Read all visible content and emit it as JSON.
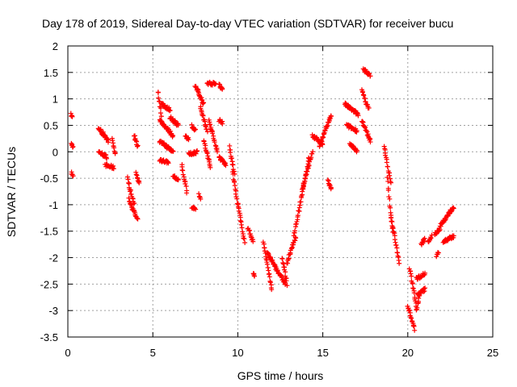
{
  "chart_data": {
    "type": "scatter",
    "title": "Day 178 of 2019, Sidereal Day-to-day VTEC variation (SDTVAR) for receiver bucu",
    "xlabel": "GPS time / hours",
    "ylabel": "SDTVAR / TECUs",
    "xlim": [
      0,
      25
    ],
    "ylim": [
      -3.5,
      2
    ],
    "xticks": [
      0,
      5,
      10,
      15,
      20,
      25
    ],
    "yticks": [
      -3.5,
      -3,
      -2.5,
      -2,
      -1.5,
      -1,
      -0.5,
      0,
      0.5,
      1,
      1.5,
      2
    ],
    "xtick_labels": [
      "0",
      "5",
      "10",
      "15",
      "20",
      "25"
    ],
    "ytick_labels": [
      "-3.5",
      "-3",
      "-2.5",
      "-2",
      "-1.5",
      "-1",
      "-0.5",
      "0",
      "0.5",
      "1",
      "1.5",
      "2"
    ],
    "grid": true,
    "marker": "+",
    "color": "#ff0000",
    "series": [
      {
        "name": "SDTVAR",
        "segments": [
          {
            "x": [
              0.2,
              0.25
            ],
            "y": [
              0.7,
              0.66
            ]
          },
          {
            "x": [
              0.2,
              0.3
            ],
            "y": [
              0.15,
              0.1
            ]
          },
          {
            "x": [
              0.2,
              0.3
            ],
            "y": [
              -0.4,
              -0.48
            ]
          },
          {
            "x": [
              1.8,
              2.2
            ],
            "y": [
              0.45,
              0.3
            ]
          },
          {
            "x": [
              1.8,
              2.3
            ],
            "y": [
              0.0,
              -0.1
            ]
          },
          {
            "x": [
              2.0,
              2.4
            ],
            "y": [
              0.35,
              0.2
            ]
          },
          {
            "x": [
              2.2,
              2.7
            ],
            "y": [
              -0.25,
              -0.3
            ]
          },
          {
            "x": [
              2.6,
              2.8
            ],
            "y": [
              0.25,
              -0.05
            ]
          },
          {
            "x": [
              3.5,
              3.9
            ],
            "y": [
              -0.5,
              -1.0
            ]
          },
          {
            "x": [
              3.6,
              4.1
            ],
            "y": [
              -0.9,
              -1.3
            ]
          },
          {
            "x": [
              3.9,
              4.1
            ],
            "y": [
              0.3,
              0.1
            ]
          },
          {
            "x": [
              4.0,
              4.2
            ],
            "y": [
              -0.4,
              -0.6
            ]
          },
          {
            "x": [
              5.3,
              5.5
            ],
            "y": [
              1.15,
              0.7
            ]
          },
          {
            "x": [
              5.4,
              6.2
            ],
            "y": [
              0.6,
              0.3
            ]
          },
          {
            "x": [
              5.5,
              6.0
            ],
            "y": [
              0.9,
              0.8
            ]
          },
          {
            "x": [
              5.4,
              6.2
            ],
            "y": [
              0.2,
              0.0
            ]
          },
          {
            "x": [
              5.4,
              5.9
            ],
            "y": [
              -0.15,
              -0.2
            ]
          },
          {
            "x": [
              6.0,
              6.5
            ],
            "y": [
              0.65,
              0.5
            ]
          },
          {
            "x": [
              6.2,
              6.5
            ],
            "y": [
              -0.45,
              -0.55
            ]
          },
          {
            "x": [
              6.7,
              7.0
            ],
            "y": [
              -0.25,
              -0.75
            ]
          },
          {
            "x": [
              6.9,
              7.1
            ],
            "y": [
              0.3,
              0.25
            ]
          },
          {
            "x": [
              7.1,
              7.6
            ],
            "y": [
              -0.05,
              0.0
            ]
          },
          {
            "x": [
              7.3,
              7.5
            ],
            "y": [
              0.5,
              0.4
            ]
          },
          {
            "x": [
              7.3,
              7.5
            ],
            "y": [
              -1.05,
              -1.1
            ]
          },
          {
            "x": [
              7.7,
              7.8
            ],
            "y": [
              -0.8,
              -0.9
            ]
          },
          {
            "x": [
              7.5,
              8.0
            ],
            "y": [
              1.25,
              0.9
            ]
          },
          {
            "x": [
              7.8,
              8.2
            ],
            "y": [
              0.85,
              0.4
            ]
          },
          {
            "x": [
              8.0,
              8.4
            ],
            "y": [
              0.2,
              -0.3
            ]
          },
          {
            "x": [
              8.2,
              8.7
            ],
            "y": [
              1.3,
              1.28
            ]
          },
          {
            "x": [
              8.3,
              8.8
            ],
            "y": [
              0.6,
              0.0
            ]
          },
          {
            "x": [
              8.9,
              9.1
            ],
            "y": [
              1.25,
              1.2
            ]
          },
          {
            "x": [
              8.9,
              9.1
            ],
            "y": [
              0.6,
              0.55
            ]
          },
          {
            "x": [
              8.9,
              9.3
            ],
            "y": [
              -0.1,
              -0.25
            ]
          },
          {
            "x": [
              9.5,
              9.8
            ],
            "y": [
              0.1,
              -0.4
            ]
          },
          {
            "x": [
              9.7,
              10.0
            ],
            "y": [
              -0.4,
              -1.0
            ]
          },
          {
            "x": [
              10.0,
              10.4
            ],
            "y": [
              -1.0,
              -1.7
            ]
          },
          {
            "x": [
              10.6,
              10.9
            ],
            "y": [
              -1.45,
              -1.7
            ]
          },
          {
            "x": [
              10.9,
              11.0
            ],
            "y": [
              -2.3,
              -2.35
            ]
          },
          {
            "x": [
              11.5,
              12.0
            ],
            "y": [
              -1.7,
              -2.6
            ]
          },
          {
            "x": [
              11.7,
              12.8
            ],
            "y": [
              -1.9,
              -2.5
            ]
          },
          {
            "x": [
              12.6,
              12.9
            ],
            "y": [
              -2.0,
              -2.5
            ]
          },
          {
            "x": [
              12.9,
              13.4
            ],
            "y": [
              -2.1,
              -1.6
            ]
          },
          {
            "x": [
              13.3,
              14.2
            ],
            "y": [
              -1.6,
              -0.1
            ]
          },
          {
            "x": [
              13.8,
              14.4
            ],
            "y": [
              -0.7,
              0.0
            ]
          },
          {
            "x": [
              14.4,
              15.0
            ],
            "y": [
              0.3,
              0.15
            ]
          },
          {
            "x": [
              14.8,
              15.5
            ],
            "y": [
              0.1,
              0.7
            ]
          },
          {
            "x": [
              15.3,
              15.5
            ],
            "y": [
              -0.55,
              -0.7
            ]
          },
          {
            "x": [
              16.3,
              17.1
            ],
            "y": [
              0.9,
              0.7
            ]
          },
          {
            "x": [
              16.4,
              17.0
            ],
            "y": [
              0.5,
              0.4
            ]
          },
          {
            "x": [
              16.6,
              17.0
            ],
            "y": [
              0.15,
              0.0
            ]
          },
          {
            "x": [
              17.4,
              17.8
            ],
            "y": [
              1.55,
              1.45
            ]
          },
          {
            "x": [
              17.3,
              17.7
            ],
            "y": [
              1.15,
              0.8
            ]
          },
          {
            "x": [
              17.3,
              17.8
            ],
            "y": [
              0.6,
              0.2
            ]
          },
          {
            "x": [
              18.6,
              19.0
            ],
            "y": [
              0.1,
              -0.6
            ]
          },
          {
            "x": [
              18.8,
              19.1
            ],
            "y": [
              -0.5,
              -1.5
            ]
          },
          {
            "x": [
              19.0,
              19.5
            ],
            "y": [
              -1.2,
              -2.1
            ]
          },
          {
            "x": [
              20.1,
              20.5
            ],
            "y": [
              -2.2,
              -2.9
            ]
          },
          {
            "x": [
              20.0,
              20.4
            ],
            "y": [
              -2.9,
              -3.35
            ]
          },
          {
            "x": [
              20.5,
              21.0
            ],
            "y": [
              -2.4,
              -2.3
            ]
          },
          {
            "x": [
              20.6,
              21.0
            ],
            "y": [
              -2.7,
              -2.6
            ]
          },
          {
            "x": [
              20.5,
              20.7
            ],
            "y": [
              -3.0,
              -2.7
            ]
          },
          {
            "x": [
              20.8,
              21.0
            ],
            "y": [
              -1.75,
              -1.65
            ]
          },
          {
            "x": [
              21.2,
              21.4
            ],
            "y": [
              -1.7,
              -1.6
            ]
          },
          {
            "x": [
              21.6,
              21.9
            ],
            "y": [
              -1.55,
              -1.45
            ]
          },
          {
            "x": [
              21.7,
              21.8
            ],
            "y": [
              -1.95,
              -1.9
            ]
          },
          {
            "x": [
              21.9,
              22.7
            ],
            "y": [
              -1.4,
              -1.05
            ]
          },
          {
            "x": [
              22.1,
              22.7
            ],
            "y": [
              -1.7,
              -1.6
            ]
          }
        ]
      }
    ]
  }
}
